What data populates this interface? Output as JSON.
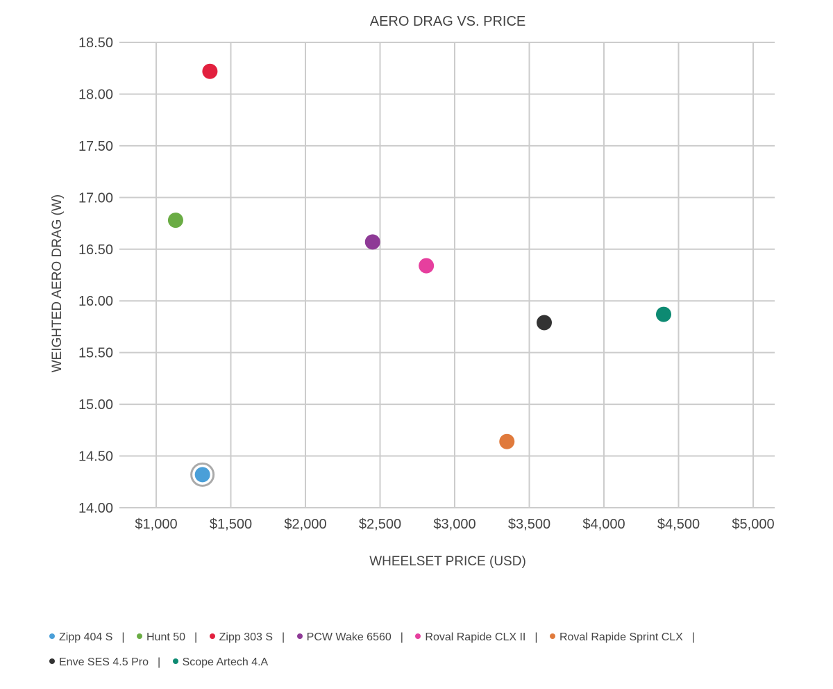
{
  "chart_data": {
    "type": "scatter",
    "title": "AERO DRAG VS. PRICE",
    "xlabel": "WHEELSET PRICE (USD)",
    "ylabel": "WEIGHTED AERO DRAG (W)",
    "xlim": [
      1000,
      5000
    ],
    "ylim": [
      14.0,
      18.5
    ],
    "x_ticks": [
      1000,
      1500,
      2000,
      2500,
      3000,
      3500,
      4000,
      4500,
      5000
    ],
    "x_tick_labels": [
      "$1,000",
      "$1,500",
      "$2,000",
      "$2,500",
      "$3,000",
      "$3,500",
      "$4,000",
      "$4,500",
      "$5,000"
    ],
    "y_ticks": [
      14.0,
      14.5,
      15.0,
      15.5,
      16.0,
      16.5,
      17.0,
      17.5,
      18.0,
      18.5
    ],
    "y_tick_labels": [
      "14.00",
      "14.50",
      "15.00",
      "15.50",
      "16.00",
      "16.50",
      "17.00",
      "17.50",
      "18.00",
      "18.50"
    ],
    "grid": true,
    "legend_position": "bottom",
    "series": [
      {
        "name": "Zipp 404 S",
        "color": "#4a9fd8",
        "x": 1310,
        "y": 14.32,
        "highlighted": true
      },
      {
        "name": "Hunt 50",
        "color": "#6aac44",
        "x": 1130,
        "y": 16.78
      },
      {
        "name": "Zipp 303 S",
        "color": "#e2203e",
        "x": 1360,
        "y": 18.22
      },
      {
        "name": "PCW Wake 6560",
        "color": "#8e3a96",
        "x": 2450,
        "y": 16.57
      },
      {
        "name": "Roval Rapide CLX II",
        "color": "#e63f9e",
        "x": 2810,
        "y": 16.34
      },
      {
        "name": "Roval Rapide Sprint CLX",
        "color": "#e07a3c",
        "x": 3350,
        "y": 14.64
      },
      {
        "name": "Enve SES 4.5 Pro",
        "color": "#333333",
        "x": 3600,
        "y": 15.79
      },
      {
        "name": "Scope Artech 4.A",
        "color": "#0d8a72",
        "x": 4400,
        "y": 15.87
      }
    ]
  }
}
